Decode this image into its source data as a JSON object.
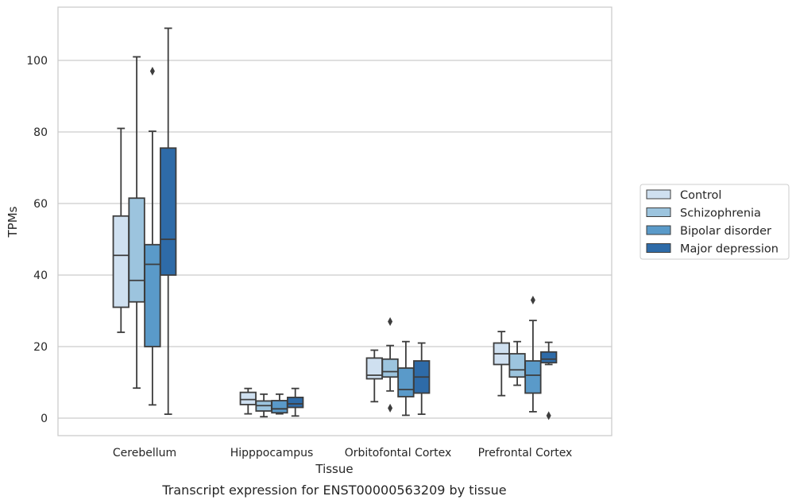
{
  "caption": "Transcript expression for ENST00000563209 by tissue",
  "chart_data": {
    "type": "boxplot",
    "xlabel": "Tissue",
    "ylabel": "TPMs",
    "ylim": [
      -5,
      115
    ],
    "yticks": [
      0,
      20,
      40,
      60,
      80,
      100
    ],
    "grid": "horizontal",
    "legend_position": "right, outside plot",
    "categories": [
      "Cerebellum",
      "Hipppocampus",
      "Orbitofontal Cortex",
      "Prefrontal Cortex"
    ],
    "series": [
      {
        "name": "Control",
        "color": "#cfe0f0",
        "boxes": [
          {
            "whisker_low": 24,
            "q1": 31,
            "median": 45.5,
            "q3": 56.5,
            "whisker_high": 81,
            "outliers": []
          },
          {
            "whisker_low": 1.2,
            "q1": 3.8,
            "median": 5.2,
            "q3": 7.2,
            "whisker_high": 8.3,
            "outliers": []
          },
          {
            "whisker_low": 4.6,
            "q1": 11,
            "median": 12,
            "q3": 16.8,
            "whisker_high": 19,
            "outliers": []
          },
          {
            "whisker_low": 6.3,
            "q1": 15,
            "median": 18,
            "q3": 21,
            "whisker_high": 24.2,
            "outliers": []
          }
        ]
      },
      {
        "name": "Schizophrenia",
        "color": "#9cc4de",
        "boxes": [
          {
            "whisker_low": 8.4,
            "q1": 32.5,
            "median": 38.5,
            "q3": 61.5,
            "whisker_high": 101,
            "outliers": []
          },
          {
            "whisker_low": 0.4,
            "q1": 2,
            "median": 3.5,
            "q3": 4.8,
            "whisker_high": 6.7,
            "outliers": []
          },
          {
            "whisker_low": 7.6,
            "q1": 11.5,
            "median": 13,
            "q3": 16.5,
            "whisker_high": 20.3,
            "outliers": [
              2.8,
              27
            ]
          },
          {
            "whisker_low": 9.2,
            "q1": 11.5,
            "median": 13.5,
            "q3": 18,
            "whisker_high": 21.4,
            "outliers": []
          }
        ]
      },
      {
        "name": "Bipolar disorder",
        "color": "#5a9ac9",
        "boxes": [
          {
            "whisker_low": 3.7,
            "q1": 20,
            "median": 43,
            "q3": 48.5,
            "whisker_high": 80.2,
            "outliers": [
              97
            ]
          },
          {
            "whisker_low": 1.2,
            "q1": 1.5,
            "median": 2.6,
            "q3": 4.9,
            "whisker_high": 6.7,
            "outliers": []
          },
          {
            "whisker_low": 0.8,
            "q1": 6,
            "median": 8,
            "q3": 14,
            "whisker_high": 21.4,
            "outliers": []
          },
          {
            "whisker_low": 1.8,
            "q1": 7,
            "median": 12,
            "q3": 16,
            "whisker_high": 27.3,
            "outliers": [
              33
            ]
          }
        ]
      },
      {
        "name": "Major depression",
        "color": "#2e6ba8",
        "boxes": [
          {
            "whisker_low": 1.1,
            "q1": 40,
            "median": 50,
            "q3": 75.5,
            "whisker_high": 109,
            "outliers": []
          },
          {
            "whisker_low": 0.6,
            "q1": 3,
            "median": 4,
            "q3": 5.8,
            "whisker_high": 8.3,
            "outliers": []
          },
          {
            "whisker_low": 1.1,
            "q1": 7,
            "median": 11.5,
            "q3": 16,
            "whisker_high": 21,
            "outliers": []
          },
          {
            "whisker_low": 15,
            "q1": 15.5,
            "median": 16.5,
            "q3": 18.5,
            "whisker_high": 21.2,
            "outliers": [
              0.7
            ]
          }
        ]
      }
    ]
  }
}
